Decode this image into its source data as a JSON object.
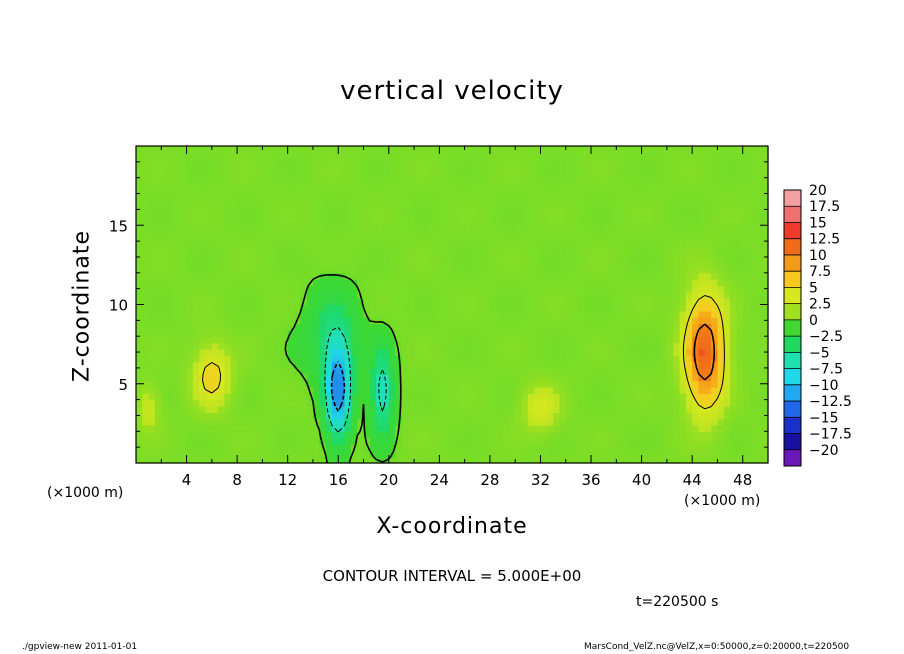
{
  "chart_data": {
    "type": "heatmap",
    "title": "vertical velocity",
    "xlabel": "X-coordinate",
    "ylabel": "Z-coordinate",
    "x_unit_label": "(×1000 m)",
    "x_ticks": [
      4,
      8,
      12,
      16,
      20,
      24,
      28,
      32,
      36,
      40,
      44,
      48
    ],
    "y_ticks": [
      5,
      10,
      15
    ],
    "xlim": [
      0,
      50
    ],
    "ylim": [
      0,
      20
    ],
    "colorbar": {
      "labels": [
        "20",
        "17.5",
        "15",
        "12.5",
        "10",
        "7.5",
        "5",
        "2.5",
        "0",
        "−2.5",
        "−5",
        "−7.5",
        "−10",
        "−12.5",
        "−15",
        "−17.5",
        "−20"
      ],
      "levels": [
        20,
        17.5,
        15,
        12.5,
        10,
        7.5,
        5,
        2.5,
        0,
        -2.5,
        -5,
        -7.5,
        -10,
        -12.5,
        -15,
        -17.5,
        -20
      ],
      "colors": [
        "#f5a0a0",
        "#f07070",
        "#ee3a2a",
        "#f06a1a",
        "#f59a18",
        "#f8c820",
        "#d8e820",
        "#a0e020",
        "#40d830",
        "#20d860",
        "#20e0b0",
        "#20d8e8",
        "#20a8f0",
        "#2068e8",
        "#1a30c8",
        "#1a10a0",
        "#6a18b8"
      ]
    },
    "contour_interval_text": "CONTOUR INTERVAL = 5.000E+00",
    "time_text": "t=220500 s",
    "features": [
      {
        "name": "updraft",
        "x": 45,
        "z": 7,
        "value": 12,
        "sx": 1.6,
        "sz": 3.6
      },
      {
        "name": "updraft",
        "x": 6,
        "z": 5.5,
        "value": 5.5,
        "sx": 1.5,
        "sz": 2
      },
      {
        "name": "updraft",
        "x": 1,
        "z": 3.5,
        "value": 3,
        "sx": 0.9,
        "sz": 1.5
      },
      {
        "name": "updraft",
        "x": 32,
        "z": 3.5,
        "value": 4,
        "sx": 1.5,
        "sz": 1.5
      },
      {
        "name": "downdraft",
        "x": 16,
        "z": 4.5,
        "value": -12,
        "sx": 1.0,
        "sz": 3.0
      },
      {
        "name": "downdraft",
        "x": 19.5,
        "z": 4.5,
        "value": -7,
        "sx": 0.9,
        "sz": 2.8
      },
      {
        "name": "downdraft",
        "x": 15.5,
        "z": 8,
        "value": -4,
        "sx": 2.2,
        "sz": 3
      }
    ]
  },
  "footer": {
    "left": "./gpview-new  2011-01-01",
    "right": "MarsCond_VelZ.nc@VelZ,x=0:50000,z=0:20000,t=220500"
  }
}
